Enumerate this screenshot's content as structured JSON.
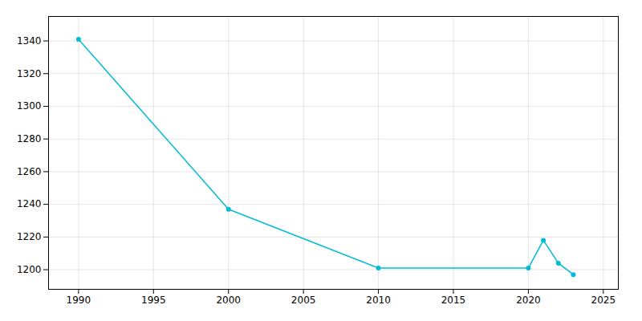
{
  "chart_data": {
    "type": "line",
    "x": [
      1990,
      2000,
      2010,
      2020,
      2021,
      2022,
      2023
    ],
    "values": [
      1341,
      1237,
      1201,
      1201,
      1218,
      1204,
      1197
    ],
    "color": "#00BCD4",
    "marker": "circle",
    "xlim": [
      1988,
      2026
    ],
    "ylim": [
      1188,
      1355
    ],
    "xticks": [
      1990,
      1995,
      2000,
      2005,
      2010,
      2015,
      2020,
      2025
    ],
    "yticks": [
      1200,
      1220,
      1240,
      1260,
      1280,
      1300,
      1320,
      1340
    ],
    "grid": true
  }
}
